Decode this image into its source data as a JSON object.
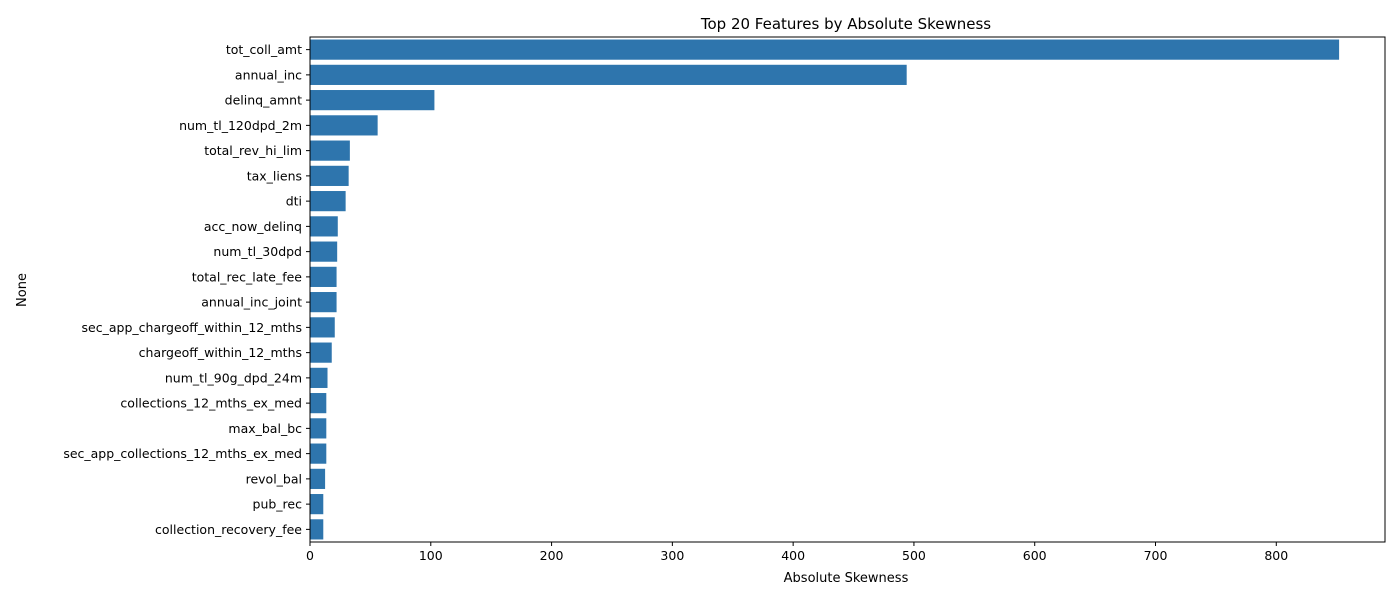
{
  "chart_data": {
    "type": "bar",
    "orientation": "horizontal",
    "title": "Top 20 Features by Absolute Skewness",
    "xlabel": "Absolute Skewness",
    "ylabel": "None",
    "xlim": [
      0,
      890
    ],
    "xticks": [
      0,
      100,
      200,
      300,
      400,
      500,
      600,
      700,
      800
    ],
    "grid": false,
    "bar_color": "#2e75ad",
    "categories": [
      "tot_coll_amt",
      "annual_inc",
      "delinq_amnt",
      "num_tl_120dpd_2m",
      "total_rev_hi_lim",
      "tax_liens",
      "dti",
      "acc_now_delinq",
      "num_tl_30dpd",
      "total_rec_late_fee",
      "annual_inc_joint",
      "sec_app_chargeoff_within_12_mths",
      "chargeoff_within_12_mths",
      "num_tl_90g_dpd_24m",
      "collections_12_mths_ex_med",
      "max_bal_bc",
      "sec_app_collections_12_mths_ex_med",
      "revol_bal",
      "pub_rec",
      "collection_recovery_fee"
    ],
    "values": [
      852,
      494,
      103,
      56,
      33,
      32,
      29.5,
      23,
      22.5,
      22,
      22,
      20.5,
      18,
      14.5,
      13.5,
      13.5,
      13.5,
      12.5,
      11,
      11
    ]
  }
}
